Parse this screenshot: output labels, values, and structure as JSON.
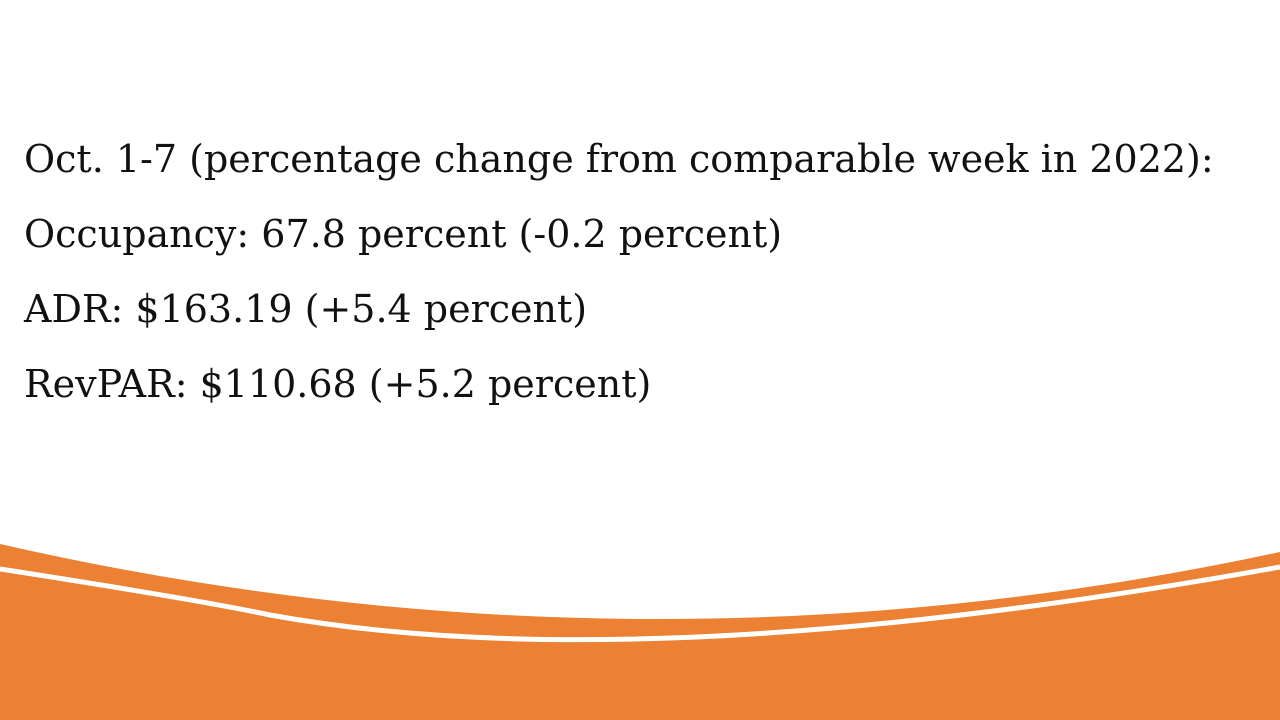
{
  "slide": {
    "accent_color": "#EC8134",
    "lines": [
      "Oct. 1-7 (percentage change from comparable week in 2022):",
      "Occupancy: 67.8 percent (-0.2 percent)",
      "ADR: $163.19 (+5.4 percent)",
      "RevPAR: $110.68 (+5.2 percent)"
    ]
  }
}
